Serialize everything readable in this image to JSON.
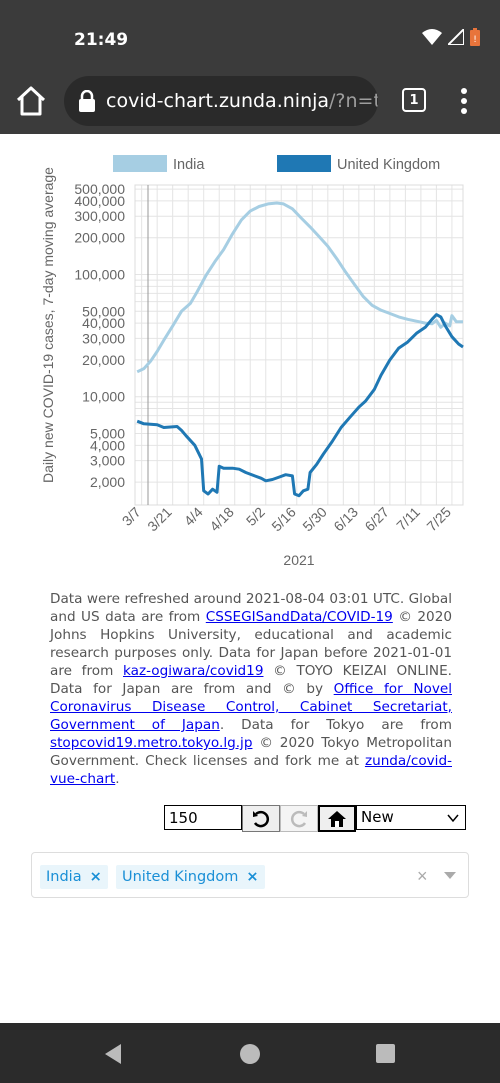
{
  "status_bar": {
    "time": "21:49"
  },
  "browser": {
    "url_host": "covid-chart.zunda.ninja",
    "url_path": "/?n=t&",
    "tab_count": "1"
  },
  "chart_data": {
    "type": "line",
    "xlabel": "2021",
    "ylabel": "Daily new COVID-19 cases, 7-day moving average",
    "y_scale": "log",
    "ylim": [
      1300,
      540000
    ],
    "x_ticks": [
      "3/7",
      "3/21",
      "4/4",
      "4/18",
      "5/2",
      "5/16",
      "5/30",
      "6/13",
      "6/27",
      "7/11",
      "7/25"
    ],
    "y_ticks": [
      {
        "value": 500000,
        "label": "500,000"
      },
      {
        "value": 400000,
        "label": "400,000"
      },
      {
        "value": 300000,
        "label": "300,000"
      },
      {
        "value": 200000,
        "label": "200,000"
      },
      {
        "value": 100000,
        "label": "100,000"
      },
      {
        "value": 50000,
        "label": "50,000"
      },
      {
        "value": 40000,
        "label": "40,000"
      },
      {
        "value": 30000,
        "label": "30,000"
      },
      {
        "value": 20000,
        "label": "20,000"
      },
      {
        "value": 10000,
        "label": "10,000"
      },
      {
        "value": 5000,
        "label": "5,000"
      },
      {
        "value": 4000,
        "label": "4,000"
      },
      {
        "value": 3000,
        "label": "3,000"
      },
      {
        "value": 2000,
        "label": "2,000"
      }
    ],
    "grid": true,
    "legend_position": "top",
    "series": [
      {
        "name": "India",
        "color": "#a6cee3",
        "points": [
          [
            "3/5",
            16000
          ],
          [
            "3/8",
            17000
          ],
          [
            "3/11",
            19500
          ],
          [
            "3/14",
            23500
          ],
          [
            "3/17",
            29000
          ],
          [
            "3/21",
            38000
          ],
          [
            "3/25",
            50000
          ],
          [
            "3/29",
            58000
          ],
          [
            "4/1",
            72000
          ],
          [
            "4/5",
            98000
          ],
          [
            "4/9",
            127000
          ],
          [
            "4/13",
            160000
          ],
          [
            "4/17",
            215000
          ],
          [
            "4/21",
            280000
          ],
          [
            "4/25",
            330000
          ],
          [
            "4/29",
            360000
          ],
          [
            "5/3",
            378000
          ],
          [
            "5/7",
            385000
          ],
          [
            "5/10",
            378000
          ],
          [
            "5/14",
            345000
          ],
          [
            "5/18",
            290000
          ],
          [
            "5/22",
            245000
          ],
          [
            "5/26",
            205000
          ],
          [
            "5/30",
            170000
          ],
          [
            "6/3",
            135000
          ],
          [
            "6/7",
            105000
          ],
          [
            "6/11",
            83000
          ],
          [
            "6/15",
            66000
          ],
          [
            "6/19",
            56000
          ],
          [
            "6/23",
            51000
          ],
          [
            "6/27",
            48000
          ],
          [
            "7/1",
            45000
          ],
          [
            "7/5",
            43000
          ],
          [
            "7/9",
            41500
          ],
          [
            "7/13",
            40000
          ],
          [
            "7/16",
            39500
          ],
          [
            "7/18",
            42000
          ],
          [
            "7/20",
            37000
          ],
          [
            "7/22",
            40000
          ],
          [
            "7/24",
            38000
          ],
          [
            "7/25",
            46000
          ],
          [
            "7/27",
            41000
          ],
          [
            "7/30",
            41000
          ]
        ]
      },
      {
        "name": "United Kingdom",
        "color": "#1f78b4",
        "points": [
          [
            "3/5",
            6300
          ],
          [
            "3/8",
            6000
          ],
          [
            "3/11",
            5950
          ],
          [
            "3/14",
            5900
          ],
          [
            "3/17",
            5600
          ],
          [
            "3/20",
            5650
          ],
          [
            "3/23",
            5700
          ],
          [
            "3/25",
            5300
          ],
          [
            "3/27",
            4800
          ],
          [
            "3/31",
            4000
          ],
          [
            "4/3",
            3100
          ],
          [
            "4/4",
            1700
          ],
          [
            "4/6",
            1600
          ],
          [
            "4/8",
            1750
          ],
          [
            "4/10",
            1650
          ],
          [
            "4/11",
            2700
          ],
          [
            "4/13",
            2600
          ],
          [
            "4/17",
            2600
          ],
          [
            "4/20",
            2550
          ],
          [
            "4/23",
            2400
          ],
          [
            "4/27",
            2250
          ],
          [
            "4/30",
            2150
          ],
          [
            "5/2",
            2050
          ],
          [
            "5/5",
            2100
          ],
          [
            "5/8",
            2200
          ],
          [
            "5/11",
            2300
          ],
          [
            "5/14",
            2250
          ],
          [
            "5/15",
            1600
          ],
          [
            "5/17",
            1550
          ],
          [
            "5/19",
            1700
          ],
          [
            "5/21",
            1750
          ],
          [
            "5/22",
            2400
          ],
          [
            "5/25",
            2800
          ],
          [
            "5/28",
            3400
          ],
          [
            "6/1",
            4300
          ],
          [
            "6/5",
            5600
          ],
          [
            "6/9",
            6800
          ],
          [
            "6/13",
            8200
          ],
          [
            "6/16",
            9200
          ],
          [
            "6/20",
            11500
          ],
          [
            "6/23",
            15000
          ],
          [
            "6/27",
            20000
          ],
          [
            "7/1",
            25000
          ],
          [
            "7/5",
            28000
          ],
          [
            "7/9",
            33000
          ],
          [
            "7/13",
            37000
          ],
          [
            "7/16",
            43000
          ],
          [
            "7/18",
            47000
          ],
          [
            "7/20",
            45000
          ],
          [
            "7/22",
            38000
          ],
          [
            "7/25",
            31000
          ],
          [
            "7/28",
            27000
          ],
          [
            "7/30",
            25500
          ]
        ]
      }
    ]
  },
  "info": {
    "t1": "Data were refreshed around 2021-08-04 03:01 UTC. Global and US data are from ",
    "l1": "CSSEGISandData/COVID-19",
    "t2": " © 2020 Johns Hopkins University, educational and academic research purposes only. Data for Japan before 2021-01-01 are from ",
    "l2": "kaz-ogiwara/covid19",
    "t3": " © TOYO KEIZAI ONLINE. Data for Japan are from and © by ",
    "l3": "Office for Novel Coronavirus Disease Control, Cabinet Secretariat, Government of Japan",
    "t4": ". Data for Tokyo are from ",
    "l4": "stopcovid19.metro.tokyo.lg.jp",
    "t5": " © 2020 Tokyo Metropolitan Government. Check licenses and fork me at ",
    "l5": "zunda/covid-vue-chart",
    "t6": "."
  },
  "controls": {
    "days_value": "150",
    "mode_selected": "New"
  },
  "countries": {
    "tags": [
      "India",
      "United Kingdom"
    ],
    "remove_glyph": "×",
    "clear_glyph": "×"
  }
}
